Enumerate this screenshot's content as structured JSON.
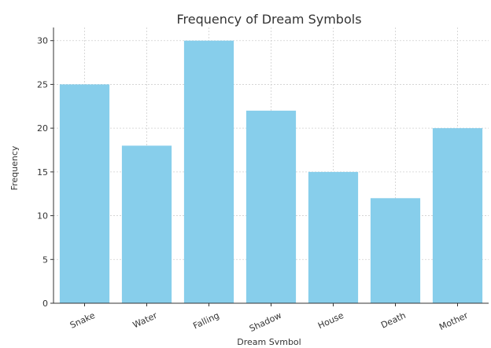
{
  "chart_data": {
    "type": "bar",
    "title": "Frequency of Dream Symbols",
    "xlabel": "Dream Symbol",
    "ylabel": "Frequency",
    "categories": [
      "Snake",
      "Water",
      "Falling",
      "Shadow",
      "House",
      "Death",
      "Mother"
    ],
    "values": [
      25,
      18,
      30,
      22,
      15,
      12,
      20
    ],
    "ylim": [
      0,
      31.5
    ],
    "yticks": [
      0,
      5,
      10,
      15,
      20,
      25,
      30
    ],
    "grid": true,
    "bar_color": "#87ceeb"
  }
}
